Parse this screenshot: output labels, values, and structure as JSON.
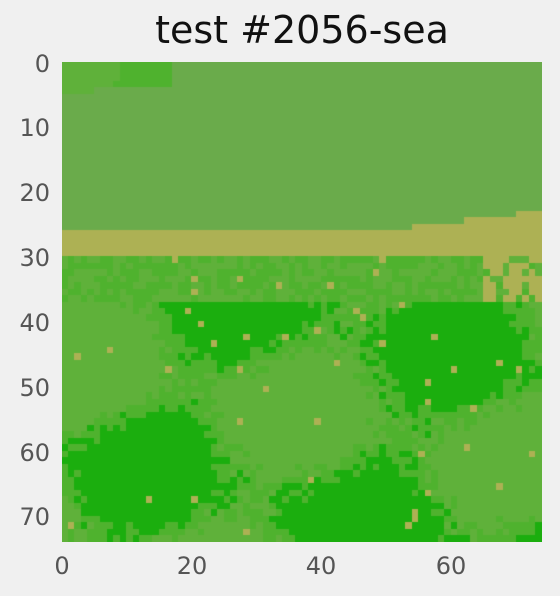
{
  "title": "test #2056-sea",
  "chart_data": {
    "type": "heatmap",
    "title": "test #2056-sea",
    "x_ticks": [
      0,
      20,
      40,
      60
    ],
    "y_ticks": [
      0,
      10,
      20,
      30,
      40,
      50,
      60,
      70
    ],
    "xlim": [
      0,
      74
    ],
    "ylim": [
      74,
      0
    ],
    "grid": false,
    "palette": {
      "grass_light": "#6aab4b",
      "grass_bright": "#5fb13a",
      "grass_mid": "#4fb22e",
      "grass_dark": "#1bae0e",
      "sand": "#adb154"
    }
  }
}
